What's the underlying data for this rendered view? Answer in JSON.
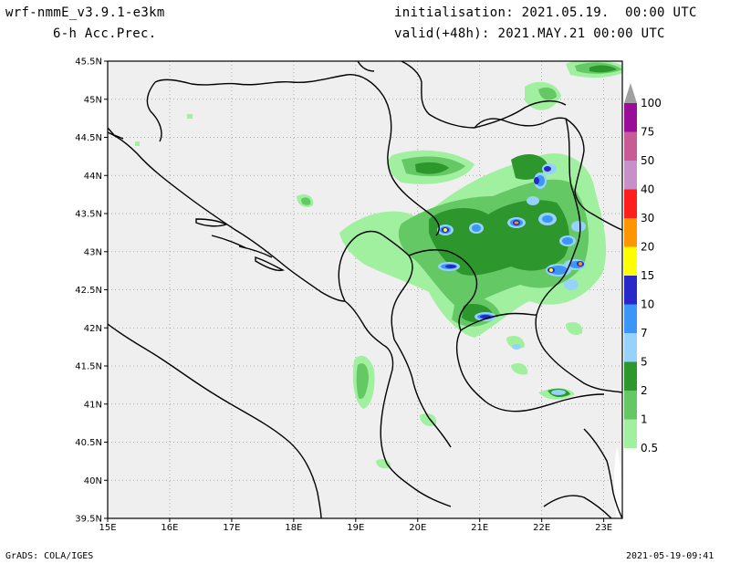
{
  "header": {
    "model": "wrf-nmmE_v3.9.1-e3km",
    "field": "6-h Acc.Prec.",
    "init": "initialisation: 2021.05.19.  00:00 UTC",
    "valid": "valid(+48h): 2021.MAY.21 00:00 UTC"
  },
  "footer": {
    "credit": "GrADS: COLA/IGES",
    "timestamp": "2021-05-19-09:41"
  },
  "map": {
    "lat_labels": [
      "45.5N",
      "45N",
      "44.5N",
      "44N",
      "43.5N",
      "43N",
      "42.5N",
      "42N",
      "41.5N",
      "41N",
      "40.5N",
      "40N",
      "39.5N"
    ],
    "lon_labels": [
      "15E",
      "16E",
      "17E",
      "18E",
      "19E",
      "20E",
      "21E",
      "22E",
      "23E"
    ],
    "lat_range": [
      39.5,
      45.5
    ],
    "lon_range": [
      15,
      23.3
    ],
    "background_color": "#efefef",
    "grid": true
  },
  "colorbar": {
    "labels": [
      "100",
      "75",
      "50",
      "40",
      "30",
      "20",
      "15",
      "10",
      "7",
      "5",
      "2",
      "1",
      "0.5"
    ],
    "colors": [
      "#a0a0a0",
      "#9a0c9a",
      "#c85a96",
      "#c890c8",
      "#ff1e1e",
      "#ff9600",
      "#ffff00",
      "#2828c8",
      "#3c96f5",
      "#96d2fa",
      "#2d962d",
      "#64c864",
      "#a0f0a0"
    ]
  }
}
